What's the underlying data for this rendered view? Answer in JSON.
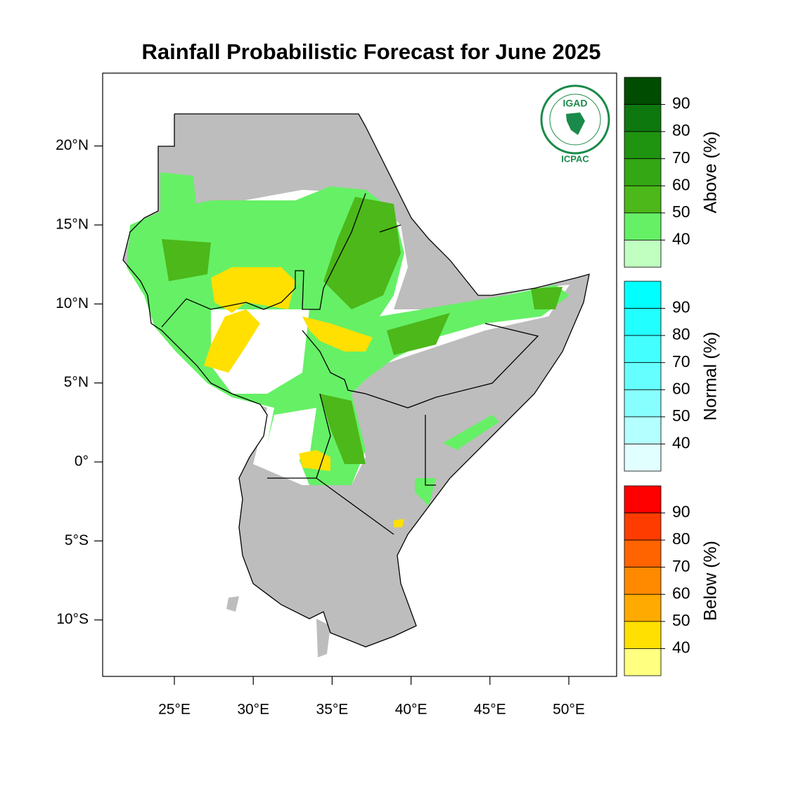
{
  "title": "Rainfall Probabilistic Forecast for June 2025",
  "map": {
    "lat_ticks": [
      {
        "value": 20,
        "label": "20°N"
      },
      {
        "value": 15,
        "label": "15°N"
      },
      {
        "value": 10,
        "label": "10°N"
      },
      {
        "value": 5,
        "label": "5°N"
      },
      {
        "value": 0,
        "label": "0°"
      },
      {
        "value": -5,
        "label": "5°S"
      },
      {
        "value": -10,
        "label": "10°S"
      }
    ],
    "lon_ticks": [
      {
        "value": 25,
        "label": "25°E"
      },
      {
        "value": 30,
        "label": "30°E"
      },
      {
        "value": 35,
        "label": "35°E"
      },
      {
        "value": 40,
        "label": "40°E"
      },
      {
        "value": 45,
        "label": "45°E"
      },
      {
        "value": 50,
        "label": "50°E"
      }
    ]
  },
  "logo": {
    "name": "IGAD",
    "org": "ICPAC"
  },
  "colorbars": [
    {
      "label": "Above (%)",
      "lim": [
        30,
        100
      ],
      "ticks": [
        90,
        80,
        70,
        60,
        50,
        40
      ],
      "colors": [
        "#004c00",
        "#0d780d",
        "#1f9410",
        "#33a814",
        "#4cb81a",
        "#66f066",
        "#c0ffc0"
      ]
    },
    {
      "label": "Normal (%)",
      "lim": [
        30,
        100
      ],
      "ticks": [
        90,
        80,
        70,
        60,
        50,
        40
      ],
      "colors": [
        "#00ffff",
        "#22ffff",
        "#44ffff",
        "#66ffff",
        "#88ffff",
        "#b4ffff",
        "#e2ffff"
      ]
    },
    {
      "label": "Below (%)",
      "lim": [
        30,
        100
      ],
      "ticks": [
        90,
        80,
        70,
        60,
        50,
        40
      ],
      "colors": [
        "#ff0000",
        "#ff3c00",
        "#ff6400",
        "#ff8a00",
        "#ffaa00",
        "#ffe000",
        "#ffff80"
      ]
    }
  ]
}
